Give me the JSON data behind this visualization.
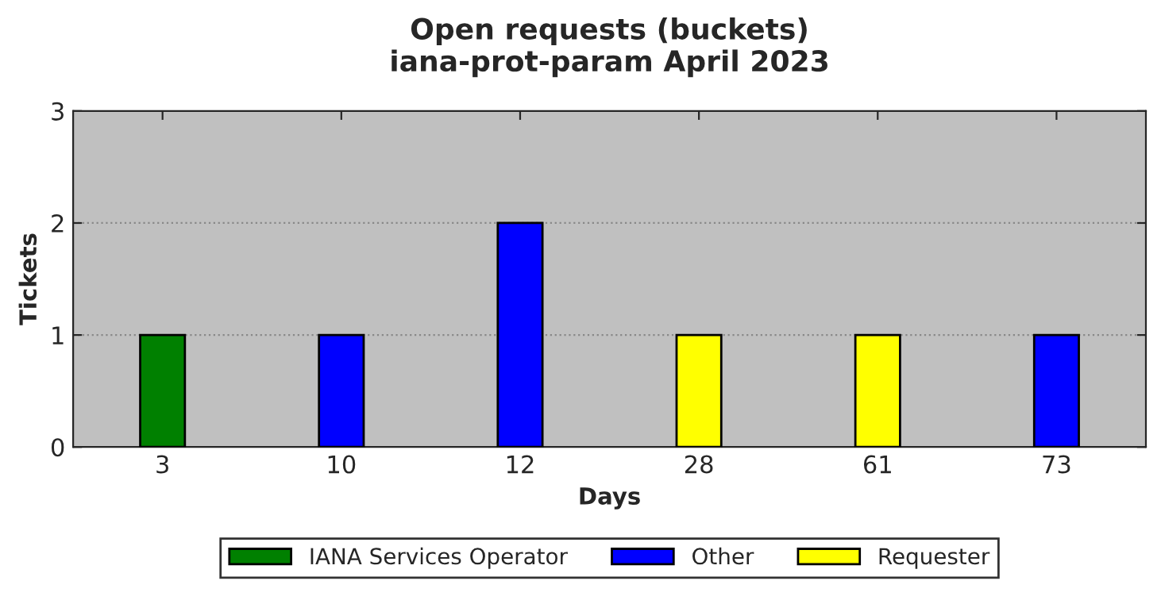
{
  "chart_data": {
    "type": "bar",
    "title": "Open requests (buckets)\niana-prot-param April 2023",
    "xlabel": "Days",
    "ylabel": "Tickets",
    "categories": [
      "3",
      "10",
      "12",
      "28",
      "61",
      "73"
    ],
    "series": [
      {
        "name": "IANA Services Operator",
        "color": "#008000",
        "values": [
          1,
          null,
          null,
          null,
          null,
          null
        ]
      },
      {
        "name": "Other",
        "color": "#0000ff",
        "values": [
          null,
          1,
          2,
          null,
          null,
          1
        ]
      },
      {
        "name": "Requester",
        "color": "#ffff00",
        "values": [
          null,
          null,
          null,
          1,
          1,
          null
        ]
      }
    ],
    "ylim": [
      0,
      3
    ],
    "yticks": [
      0,
      1,
      2,
      3
    ],
    "grid": "y",
    "legend": "bottom"
  }
}
